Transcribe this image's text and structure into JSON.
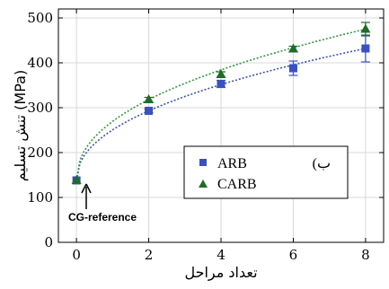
{
  "chart_data": {
    "type": "scatter",
    "xlabel": "تعداد مراحل",
    "ylabel": "تنش تسلیم (MPa)",
    "xlim": [
      -0.5,
      8.5
    ],
    "ylim": [
      0,
      520
    ],
    "x_ticks": [
      0,
      2,
      4,
      6,
      8
    ],
    "y_ticks": [
      0,
      100,
      200,
      300,
      400,
      500
    ],
    "grid": true,
    "legend_title": "(ب",
    "legend_placement": "bottom-right",
    "series": [
      {
        "name": "ARB",
        "marker": "square",
        "color": "#3a50c0",
        "trend_color": "#3a50c0",
        "x": [
          0,
          2,
          4,
          6,
          8
        ],
        "y": [
          138,
          293,
          353,
          388,
          432
        ],
        "err": [
          0,
          4,
          8,
          16,
          30
        ]
      },
      {
        "name": "CARB",
        "marker": "triangle",
        "color": "#1e6b2a",
        "trend_color": "#2f9a3f",
        "x": [
          0,
          2,
          4,
          6,
          8
        ],
        "y": [
          138,
          318,
          374,
          431,
          475
        ],
        "err": [
          0,
          5,
          6,
          6,
          15
        ]
      }
    ],
    "annotations": [
      {
        "text": "CG-reference",
        "x": 0,
        "y": 138
      }
    ]
  }
}
